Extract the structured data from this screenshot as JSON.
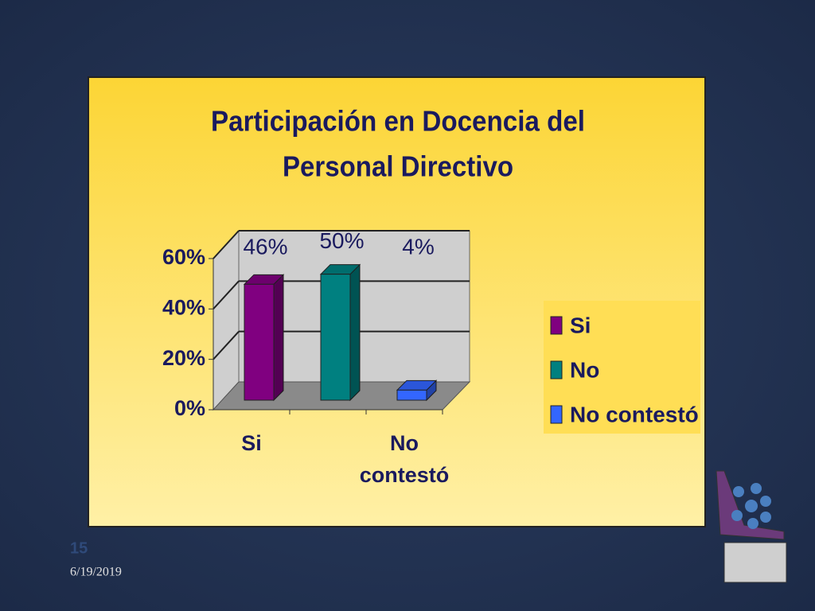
{
  "chart_data": {
    "type": "bar3d",
    "title_lines": [
      "Participación en Docencia del",
      "Personal Directivo"
    ],
    "categories": [
      "Si",
      null,
      "No contestó"
    ],
    "values": [
      46,
      50,
      4
    ],
    "value_labels": [
      "46%",
      "50%",
      "4%"
    ],
    "colors": [
      "#800080",
      "#008080",
      "#3366ff"
    ],
    "legend": [
      "Si",
      "No",
      "No contestó"
    ],
    "legend_position": "right",
    "ylim": [
      0,
      60
    ],
    "yticks": [
      {
        "value": 0,
        "label": "0%"
      },
      {
        "value": 20,
        "label": "20%"
      },
      {
        "value": 40,
        "label": "40%"
      },
      {
        "value": 60,
        "label": "60%"
      }
    ],
    "grid": true
  },
  "footer": {
    "slide_number": "15",
    "date": "6/19/2019"
  }
}
